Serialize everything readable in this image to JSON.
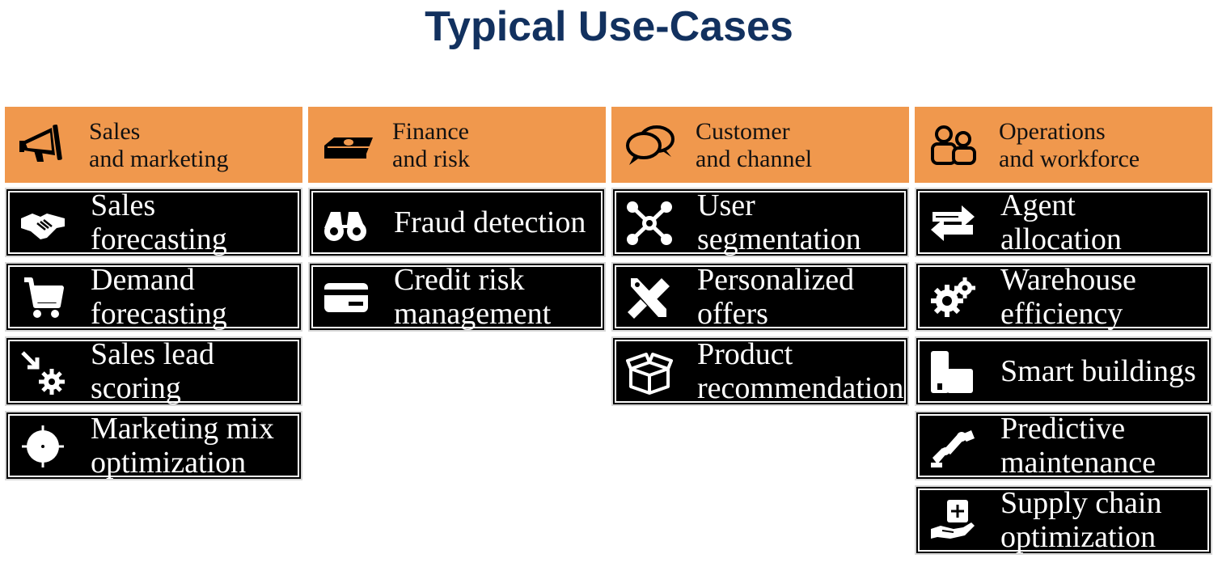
{
  "title": "Typical Use-Cases",
  "columns": [
    {
      "header": [
        "Sales",
        "and marketing"
      ],
      "header_icon": "megaphone-icon",
      "items": [
        {
          "lines": [
            "Sales",
            "forecasting"
          ],
          "icon": "handshake-icon"
        },
        {
          "lines": [
            "Demand",
            "forecasting"
          ],
          "icon": "shopping-cart-icon"
        },
        {
          "lines": [
            "Sales lead",
            "scoring"
          ],
          "icon": "lead-scoring-icon"
        },
        {
          "lines": [
            "Marketing mix",
            "optimization"
          ],
          "icon": "target-icon"
        }
      ]
    },
    {
      "header": [
        "Finance",
        "and risk"
      ],
      "header_icon": "money-stack-icon",
      "items": [
        {
          "lines": [
            "Fraud detection"
          ],
          "icon": "binoculars-icon"
        },
        {
          "lines": [
            "Credit risk",
            "management"
          ],
          "icon": "credit-card-icon"
        }
      ]
    },
    {
      "header": [
        "Customer",
        "and channel"
      ],
      "header_icon": "speech-bubbles-icon",
      "items": [
        {
          "lines": [
            "User",
            "segmentation"
          ],
          "icon": "network-nodes-icon"
        },
        {
          "lines": [
            "Personalized",
            "offers"
          ],
          "icon": "tools-icon"
        },
        {
          "lines": [
            "Product",
            "recommendation"
          ],
          "icon": "box-icon"
        }
      ]
    },
    {
      "header": [
        "Operations",
        "and workforce"
      ],
      "header_icon": "people-icon",
      "items": [
        {
          "lines": [
            "Agent",
            "allocation"
          ],
          "icon": "exchange-arrows-icon"
        },
        {
          "lines": [
            "Warehouse",
            "efficiency"
          ],
          "icon": "gears-icon"
        },
        {
          "lines": [
            "Smart buildings"
          ],
          "icon": "buildings-icon"
        },
        {
          "lines": [
            "Predictive",
            "maintenance"
          ],
          "icon": "robot-arm-icon"
        },
        {
          "lines": [
            "Supply chain",
            "optimization"
          ],
          "icon": "hand-box-icon"
        }
      ]
    }
  ]
}
